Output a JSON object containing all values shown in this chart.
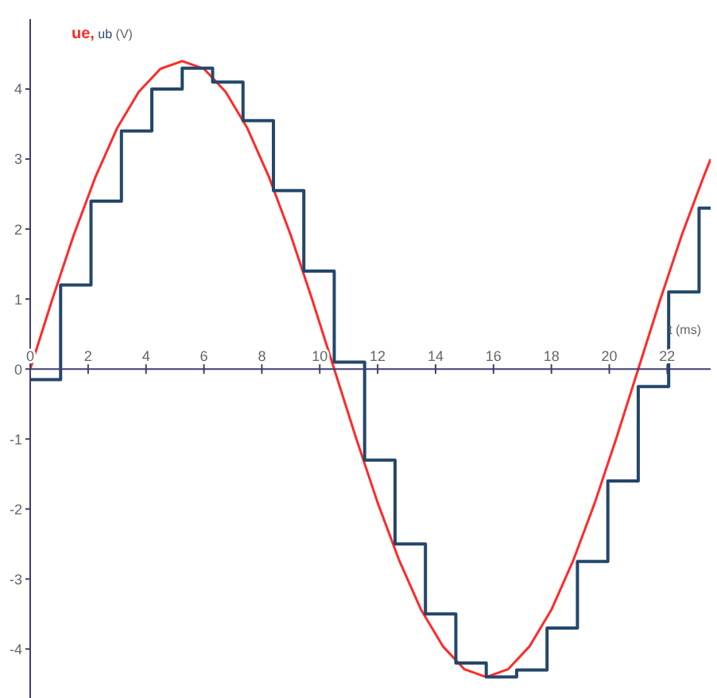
{
  "chart_data": {
    "type": "line",
    "ylabel": "(V)",
    "xlabel": "t (ms)",
    "xlim": [
      0,
      23.5
    ],
    "ylim": [
      -4.7,
      5
    ],
    "xticks": [
      0,
      2,
      4,
      6,
      8,
      10,
      12,
      14,
      16,
      18,
      20,
      22
    ],
    "yticks": [
      -4,
      -3,
      -2,
      -1,
      0,
      1,
      2,
      3,
      4
    ],
    "grid": false,
    "legend": "top left",
    "marker": "none",
    "series": [
      {
        "name": "ue,",
        "color": "#ff2a2a",
        "x": [
          0,
          0.75,
          1.5,
          2.25,
          3,
          3.75,
          4.5,
          5.25,
          6,
          6.75,
          7.5,
          8.25,
          9,
          9.75,
          10.5,
          11.25,
          12,
          12.75,
          13.5,
          14.25,
          15,
          15.75,
          16.5,
          17.25,
          18,
          18.75,
          19.5,
          20.25,
          21,
          21.75,
          22.5,
          23.25,
          23.5
        ],
        "values": [
          0,
          0.98,
          1.91,
          2.74,
          3.44,
          3.96,
          4.29,
          4.4,
          4.29,
          3.96,
          3.44,
          2.74,
          1.91,
          0.98,
          0,
          -0.98,
          -1.91,
          -2.74,
          -3.44,
          -3.96,
          -4.29,
          -4.4,
          -4.29,
          -3.96,
          -3.44,
          -2.74,
          -1.91,
          -0.98,
          0,
          0.98,
          1.91,
          2.74,
          3.0
        ]
      },
      {
        "name": "ub",
        "color": "#24476b",
        "type": "step",
        "x": [
          0,
          1.05,
          2.1,
          3.15,
          4.2,
          5.25,
          6.3,
          7.35,
          8.4,
          9.45,
          10.5,
          11.55,
          12.6,
          13.65,
          14.7,
          15.75,
          16.8,
          17.85,
          18.9,
          19.95,
          21,
          22.05,
          23.1,
          23.5
        ],
        "values": [
          -0.15,
          1.2,
          2.4,
          3.4,
          4.0,
          4.3,
          4.1,
          3.55,
          2.55,
          1.4,
          0.1,
          -1.3,
          -2.5,
          -3.5,
          -4.2,
          -4.4,
          -4.3,
          -3.7,
          -2.75,
          -1.6,
          -0.25,
          1.1,
          2.3,
          2.3
        ]
      }
    ]
  }
}
